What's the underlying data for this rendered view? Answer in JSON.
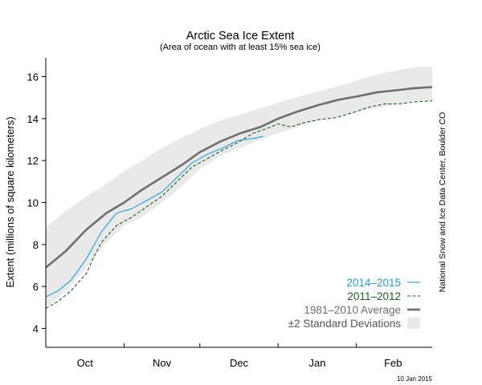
{
  "chart_data": {
    "type": "line",
    "title": "Arctic Sea Ice Extent",
    "subtitle": "(Area of ocean with at least 15% sea ice)",
    "ylabel": "Extent (millions of square kilometers)",
    "xlabel": "",
    "ylim": [
      3.1,
      16.9
    ],
    "yticks": [
      4,
      6,
      8,
      10,
      12,
      14,
      16
    ],
    "xlim": [
      0,
      153
    ],
    "month_boundaries": [
      0,
      31,
      61,
      92,
      123
    ],
    "x_categories": [
      {
        "label": "Oct",
        "x": 15.5
      },
      {
        "label": "Nov",
        "x": 46
      },
      {
        "label": "Dec",
        "x": 76.5
      },
      {
        "label": "Jan",
        "x": 107.5
      },
      {
        "label": "Feb",
        "x": 137.5
      }
    ],
    "grid": false,
    "legend_position": "bottom-right",
    "series": [
      {
        "name": "2014–2015",
        "style": "solid-thin",
        "color": "#1f9fdc",
        "points": [
          [
            0,
            5.5
          ],
          [
            5,
            5.8
          ],
          [
            10,
            6.3
          ],
          [
            16,
            7.3
          ],
          [
            22,
            8.6
          ],
          [
            28,
            9.5
          ],
          [
            34,
            9.7
          ],
          [
            40,
            10.1
          ],
          [
            46,
            10.5
          ],
          [
            52,
            11.2
          ],
          [
            58,
            11.9
          ],
          [
            64,
            12.3
          ],
          [
            70,
            12.6
          ],
          [
            76,
            12.95
          ],
          [
            82,
            13.05
          ],
          [
            86,
            13.15
          ]
        ]
      },
      {
        "name": "2011–2012",
        "style": "dashed",
        "color": "#1b5e20",
        "points": [
          [
            0,
            4.95
          ],
          [
            5,
            5.3
          ],
          [
            10,
            5.8
          ],
          [
            16,
            6.6
          ],
          [
            19,
            7.4
          ],
          [
            22,
            8.1
          ],
          [
            28,
            8.9
          ],
          [
            34,
            9.3
          ],
          [
            40,
            9.8
          ],
          [
            46,
            10.3
          ],
          [
            52,
            11.0
          ],
          [
            58,
            11.7
          ],
          [
            64,
            12.1
          ],
          [
            70,
            12.5
          ],
          [
            76,
            12.85
          ],
          [
            82,
            13.3
          ],
          [
            88,
            13.55
          ],
          [
            92,
            13.75
          ],
          [
            97,
            13.6
          ],
          [
            102,
            13.8
          ],
          [
            108,
            13.95
          ],
          [
            115,
            14.05
          ],
          [
            122,
            14.3
          ],
          [
            128,
            14.55
          ],
          [
            134,
            14.7
          ],
          [
            140,
            14.7
          ],
          [
            146,
            14.8
          ],
          [
            153,
            14.85
          ]
        ]
      },
      {
        "name": "1981–2010 Average",
        "style": "solid-thick",
        "color": "#6e6e6e",
        "points": [
          [
            0,
            6.9
          ],
          [
            8,
            7.7
          ],
          [
            16,
            8.7
          ],
          [
            24,
            9.5
          ],
          [
            31,
            10.0
          ],
          [
            38,
            10.6
          ],
          [
            46,
            11.2
          ],
          [
            54,
            11.8
          ],
          [
            61,
            12.4
          ],
          [
            69,
            12.9
          ],
          [
            77,
            13.3
          ],
          [
            85,
            13.6
          ],
          [
            92,
            14.0
          ],
          [
            100,
            14.35
          ],
          [
            108,
            14.65
          ],
          [
            116,
            14.9
          ],
          [
            123,
            15.05
          ],
          [
            131,
            15.25
          ],
          [
            139,
            15.35
          ],
          [
            146,
            15.45
          ],
          [
            153,
            15.5
          ]
        ]
      }
    ],
    "band": {
      "name": "±2 Standard Deviations",
      "color": "#e9e9e9",
      "upper": [
        [
          0,
          8.8
        ],
        [
          8,
          9.6
        ],
        [
          16,
          10.3
        ],
        [
          24,
          10.9
        ],
        [
          31,
          11.5
        ],
        [
          38,
          12.0
        ],
        [
          46,
          12.6
        ],
        [
          54,
          13.1
        ],
        [
          61,
          13.5
        ],
        [
          69,
          13.9
        ],
        [
          77,
          14.2
        ],
        [
          85,
          14.5
        ],
        [
          92,
          14.75
        ],
        [
          100,
          15.05
        ],
        [
          108,
          15.3
        ],
        [
          116,
          15.55
        ],
        [
          123,
          15.8
        ],
        [
          131,
          16.1
        ],
        [
          139,
          16.3
        ],
        [
          146,
          16.45
        ],
        [
          153,
          16.5
        ]
      ],
      "lower": [
        [
          0,
          5.0
        ],
        [
          8,
          5.8
        ],
        [
          16,
          6.9
        ],
        [
          24,
          8.1
        ],
        [
          31,
          8.9
        ],
        [
          38,
          9.3
        ],
        [
          46,
          10.0
        ],
        [
          54,
          10.8
        ],
        [
          61,
          11.6
        ],
        [
          69,
          12.2
        ],
        [
          77,
          12.6
        ],
        [
          85,
          13.0
        ],
        [
          92,
          13.3
        ],
        [
          100,
          13.6
        ],
        [
          108,
          13.9
        ],
        [
          116,
          14.1
        ],
        [
          123,
          14.3
        ],
        [
          131,
          14.5
        ],
        [
          139,
          14.7
        ],
        [
          146,
          14.85
        ],
        [
          153,
          14.9
        ]
      ]
    },
    "source_credit": "National Snow and Ice Data Center, Boulder CO",
    "date_stamp": "10 Jan 2015"
  }
}
